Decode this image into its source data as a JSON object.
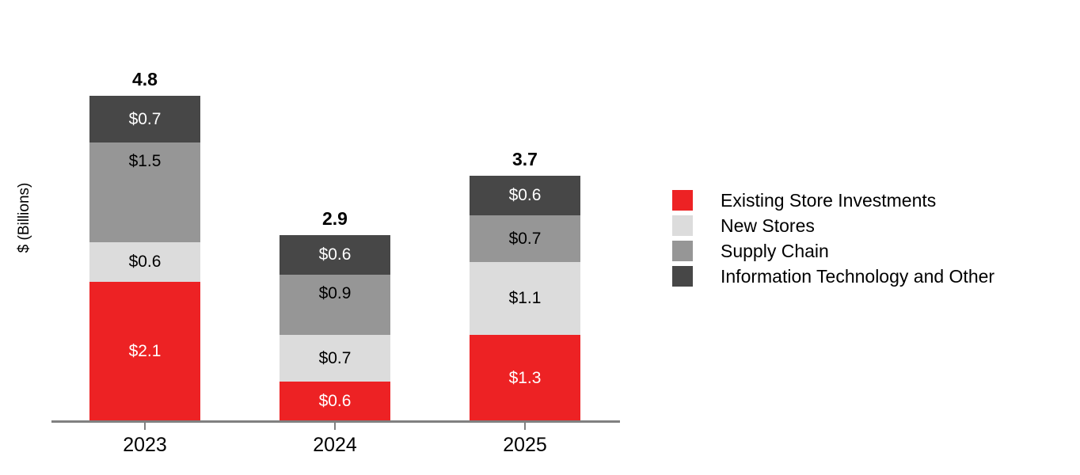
{
  "chart_data": {
    "type": "bar",
    "variant": "stacked",
    "title": "",
    "ylabel": "$ (Billions)",
    "xlabel": "",
    "value_prefix": "$",
    "grid": false,
    "legend_position": "right",
    "ylim": [
      0,
      5
    ],
    "categories": [
      "2023",
      "2024",
      "2025"
    ],
    "totals": [
      "4.8",
      "2.9",
      "3.7"
    ],
    "series": [
      {
        "name": "Existing Store Investments",
        "color": "#ED2224",
        "label_text_color": "#FFFFFF",
        "values": [
          2.1,
          0.6,
          1.3
        ]
      },
      {
        "name": "New Stores",
        "color": "#DCDCDC",
        "label_text_color": "#000000",
        "values": [
          0.6,
          0.7,
          1.1
        ]
      },
      {
        "name": "Supply Chain",
        "color": "#969696",
        "label_text_color": "#000000",
        "values": [
          1.5,
          0.9,
          0.7
        ]
      },
      {
        "name": "Information Technology and Other",
        "color": "#474747",
        "label_text_color": "#FFFFFF",
        "values": [
          0.7,
          0.6,
          0.6
        ]
      }
    ],
    "segment_label_valign": [
      [
        "center",
        "center",
        "top",
        "center"
      ],
      [
        "center",
        "center",
        "top",
        "center"
      ],
      [
        "center",
        "center",
        "center",
        "center"
      ]
    ],
    "axis_color": "#808080",
    "background_color": "#FFFFFF",
    "text_color": "#000000"
  }
}
